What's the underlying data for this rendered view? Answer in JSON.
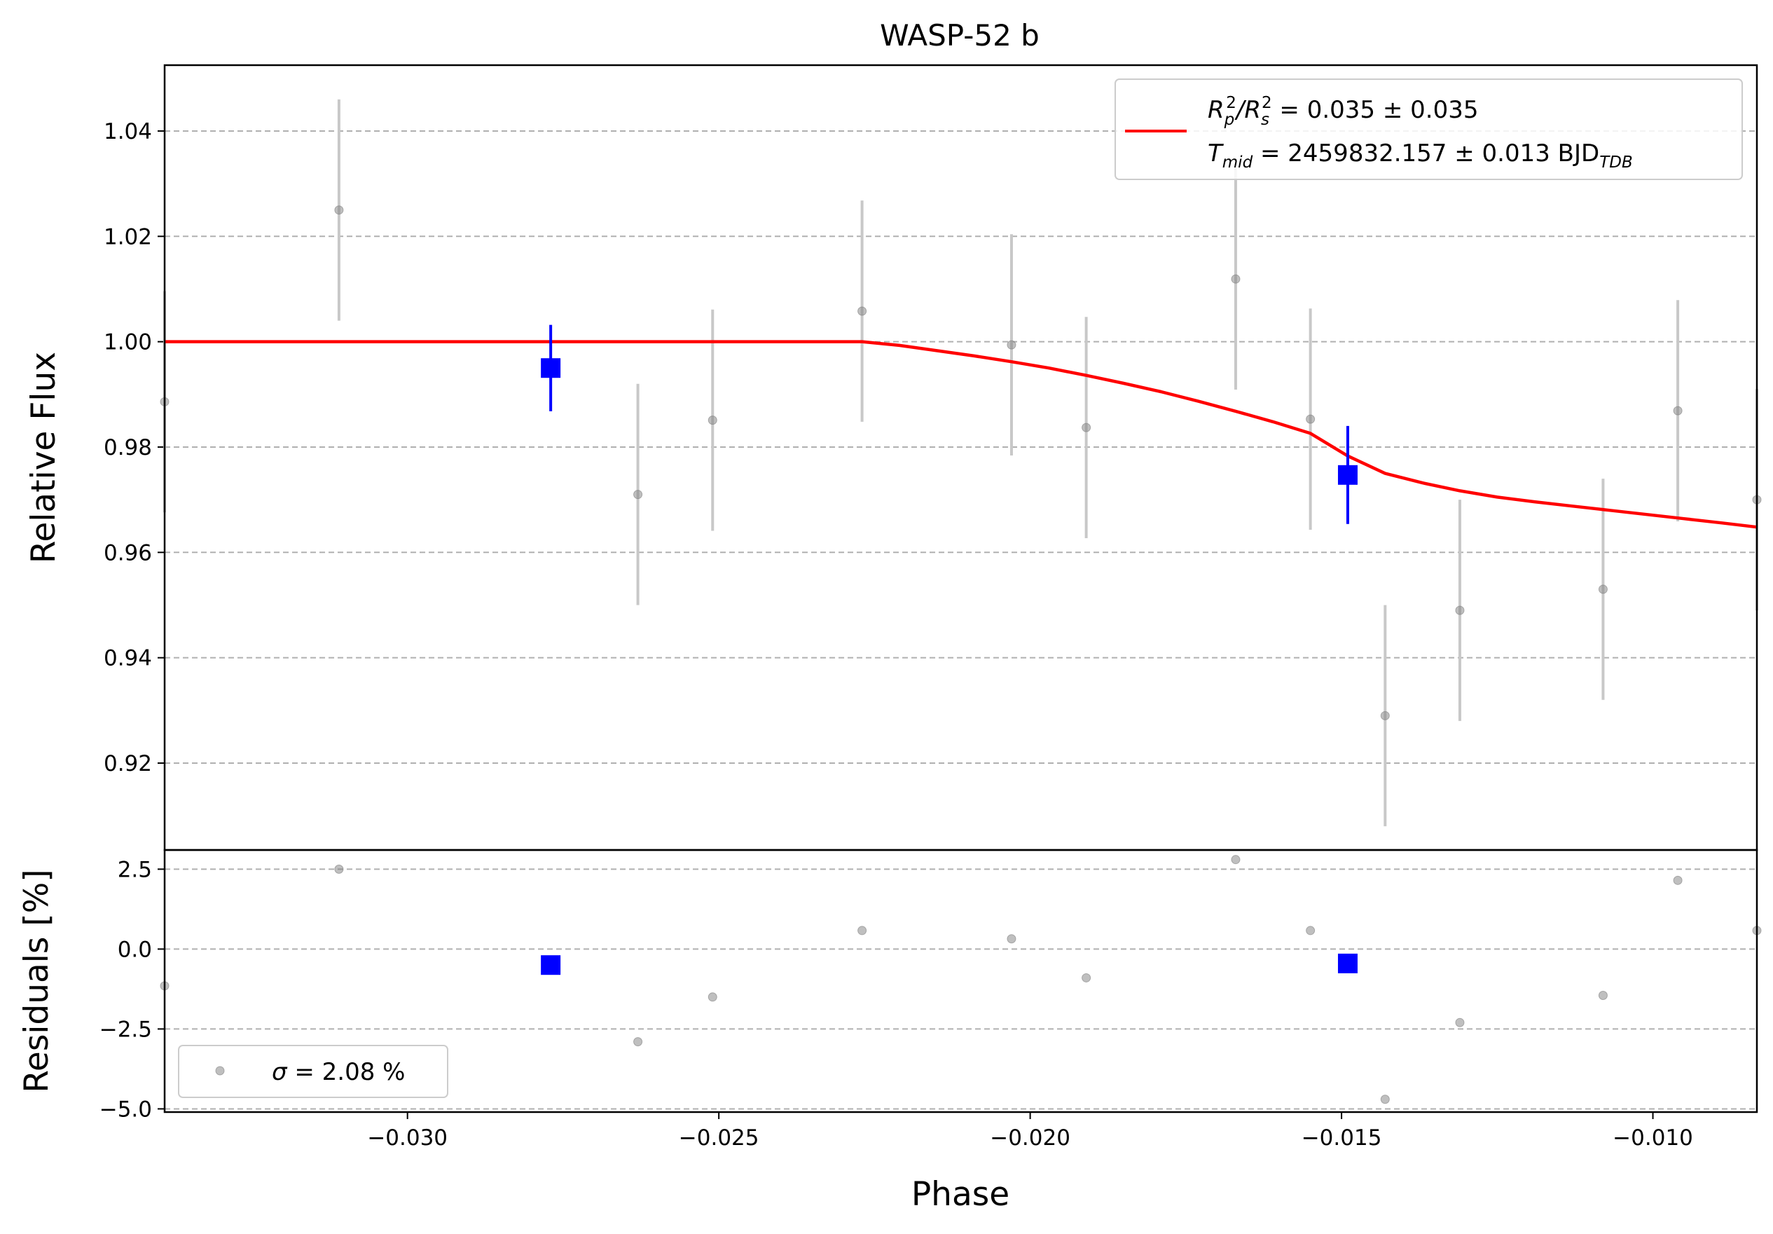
{
  "chart_data": [
    {
      "panel": "top",
      "type": "scatter",
      "title": "WASP-52 b",
      "ylabel": "Relative Flux",
      "xlim": [
        -0.0339,
        -0.00833
      ],
      "ylim": [
        0.9035,
        1.0525
      ],
      "yticks": [
        0.92,
        0.94,
        0.96,
        0.98,
        1.0,
        1.02,
        1.04
      ],
      "ytick_labels": [
        "0.92",
        "0.94",
        "0.96",
        "0.98",
        "1.00",
        "1.02",
        "1.04"
      ],
      "grid": "horizontal dashed",
      "legend_position": "top-right",
      "colors": {
        "data": "#808080",
        "errorbar": "#c8c8c8",
        "binned": "#0000ff",
        "model": "#ff0000"
      },
      "series": [
        {
          "role": "data",
          "x": [
            -0.0339,
            -0.0311,
            -0.0263,
            -0.0251,
            -0.0227,
            -0.0203,
            -0.0191,
            -0.0167,
            -0.0155,
            -0.0143,
            -0.0131,
            -0.0108,
            -0.0096,
            -0.00833
          ],
          "y": [
            0.9886,
            1.025,
            0.971,
            0.9851,
            1.0058,
            0.9994,
            0.9837,
            1.0119,
            0.9853,
            0.929,
            0.949,
            0.953,
            0.9869,
            0.97
          ],
          "yerr": [
            0.021,
            0.021,
            0.021,
            0.021,
            0.021,
            0.021,
            0.021,
            0.021,
            0.021,
            0.021,
            0.021,
            0.021,
            0.021,
            0.021
          ]
        },
        {
          "role": "binned",
          "x": [
            -0.0277,
            -0.0149
          ],
          "y": [
            0.995,
            0.9747
          ],
          "yerr": [
            0.0082,
            0.0093
          ]
        },
        {
          "role": "model",
          "name": "R_p^2/R_s^2 = 0.035 ± 0.035 ; T_mid = 2459832.157 ± 0.013 BJD_TDB",
          "x": [
            -0.0339,
            -0.0227,
            -0.0221,
            -0.0215,
            -0.0209,
            -0.0203,
            -0.0197,
            -0.0191,
            -0.0185,
            -0.0179,
            -0.0173,
            -0.0167,
            -0.0161,
            -0.0155,
            -0.0149,
            -0.0143,
            -0.0137,
            -0.0131,
            -0.0125,
            -0.0119,
            -0.0113,
            -0.0107,
            -0.0101,
            -0.0095,
            -0.0089,
            -0.00833
          ],
          "y": [
            1.0,
            1.0,
            0.9993,
            0.9983,
            0.9973,
            0.9962,
            0.995,
            0.9936,
            0.9921,
            0.9905,
            0.9887,
            0.9868,
            0.9848,
            0.9826,
            0.9783,
            0.975,
            0.9732,
            0.9717,
            0.9705,
            0.9696,
            0.9688,
            0.968,
            0.9672,
            0.9664,
            0.9656,
            0.9648
          ]
        }
      ]
    },
    {
      "panel": "bottom",
      "type": "scatter",
      "xlabel": "Phase",
      "ylabel": "Residuals [%]",
      "xlim": [
        -0.0339,
        -0.00833
      ],
      "ylim": [
        -5.1,
        3.1
      ],
      "yticks": [
        -5.0,
        -2.5,
        0.0,
        2.5
      ],
      "ytick_labels": [
        "−5.0",
        "−2.5",
        "0.0",
        "2.5"
      ],
      "xticks": [
        -0.03,
        -0.025,
        -0.02,
        -0.015,
        -0.01
      ],
      "xtick_labels": [
        "−0.030",
        "−0.025",
        "−0.020",
        "−0.015",
        "−0.010"
      ],
      "grid": "horizontal dashed",
      "legend_position": "bottom-left",
      "series": [
        {
          "role": "data",
          "name": "σ = 2.08 %",
          "x": [
            -0.0339,
            -0.0311,
            -0.0263,
            -0.0251,
            -0.0227,
            -0.0203,
            -0.0191,
            -0.0167,
            -0.0155,
            -0.0143,
            -0.0131,
            -0.0108,
            -0.0096,
            -0.00833
          ],
          "y": [
            -1.15,
            2.5,
            -2.9,
            -1.5,
            0.58,
            0.32,
            -0.9,
            2.8,
            0.58,
            -4.7,
            -2.3,
            -1.45,
            2.15,
            0.58
          ]
        },
        {
          "role": "binned",
          "x": [
            -0.0277,
            -0.0149
          ],
          "y": [
            -0.5,
            -0.45
          ]
        }
      ]
    }
  ],
  "legend_top": {
    "line1_ratio_sym": "R",
    "line1_sub_p": "p",
    "line1_sup_p": "2",
    "line1_slash": "/R",
    "line1_sub_s": "s",
    "line1_sup_s": "2",
    "line1_value": " = 0.035 ± 0.035",
    "line2_sym": "T",
    "line2_sub": "mid",
    "line2_value": " = 2459832.157 ± 0.013 BJD",
    "line2_unit_sub": "TDB"
  },
  "legend_bottom": {
    "sigma_sym": "σ",
    "value": " = 2.08 %"
  }
}
